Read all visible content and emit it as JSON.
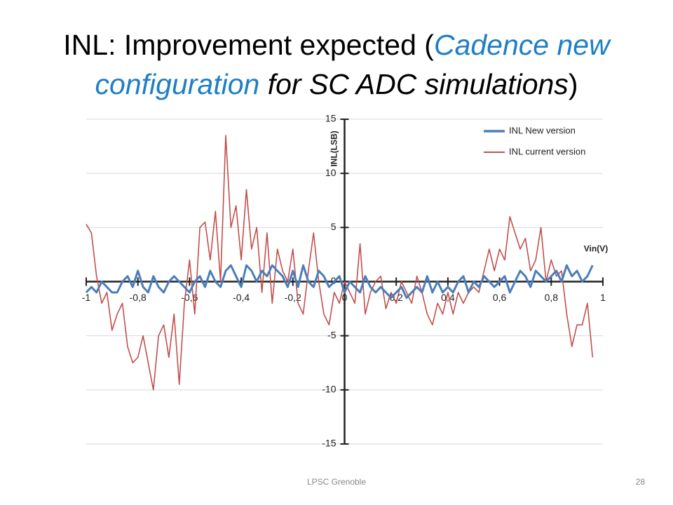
{
  "title_parts": [
    {
      "text": "INL: Improvement expected (",
      "color": "#000000",
      "italic": false
    },
    {
      "text": "Cadence new configuration",
      "color": "#1f7fc4",
      "italic": true
    },
    {
      "text": " for SC ADC simulations",
      "color": "#000000",
      "italic": true
    },
    {
      "text": ")",
      "color": "#000000",
      "italic": false
    }
  ],
  "footer": "LPSC Grenoble",
  "page_number": "28",
  "chart_data": {
    "type": "line",
    "y_label": "INL(LSB)",
    "x_label": "Vin(V)",
    "xlim": [
      -1,
      1
    ],
    "ylim": [
      -15,
      15
    ],
    "xticks": [
      -1,
      {
        "value": -0.8,
        "label": "-0,8"
      },
      {
        "value": -0.6,
        "label": "-0,6"
      },
      {
        "value": -0.4,
        "label": "-0,4"
      },
      {
        "value": -0.2,
        "label": "-0,2"
      },
      0,
      {
        "value": 0.2,
        "label": "0,2"
      },
      {
        "value": 0.4,
        "label": "0,4"
      },
      {
        "value": 0.6,
        "label": "0,6"
      },
      {
        "value": 0.8,
        "label": "0,8"
      },
      1
    ],
    "yticks": [
      -15,
      -10,
      -5,
      0,
      5,
      10,
      15
    ],
    "grid": true,
    "legend": "top-right",
    "x": [
      -1,
      -0.98,
      -0.96,
      -0.94,
      -0.92,
      -0.9,
      -0.88,
      -0.86,
      -0.84,
      -0.82,
      -0.8,
      -0.78,
      -0.76,
      -0.74,
      -0.72,
      -0.7,
      -0.68,
      -0.66,
      -0.64,
      -0.62,
      -0.6,
      -0.58,
      -0.56,
      -0.54,
      -0.52,
      -0.5,
      -0.48,
      -0.46,
      -0.44,
      -0.42,
      -0.4,
      -0.38,
      -0.36,
      -0.34,
      -0.32,
      -0.3,
      -0.28,
      -0.26,
      -0.24,
      -0.22,
      -0.2,
      -0.18,
      -0.16,
      -0.14,
      -0.12,
      -0.1,
      -0.08,
      -0.06,
      -0.04,
      -0.02,
      0,
      0.02,
      0.04,
      0.06,
      0.08,
      0.1,
      0.12,
      0.14,
      0.16,
      0.18,
      0.2,
      0.22,
      0.24,
      0.26,
      0.28,
      0.3,
      0.32,
      0.34,
      0.36,
      0.38,
      0.4,
      0.42,
      0.44,
      0.46,
      0.48,
      0.5,
      0.52,
      0.54,
      0.56,
      0.58,
      0.6,
      0.62,
      0.64,
      0.66,
      0.68,
      0.7,
      0.72,
      0.74,
      0.76,
      0.78,
      0.8,
      0.82,
      0.84,
      0.86,
      0.88,
      0.9,
      0.92,
      0.94,
      0.96
    ],
    "series": [
      {
        "name": "INL New version",
        "color": "#4a7ebb",
        "width": 3,
        "values": [
          -1,
          -0.5,
          -1,
          0,
          -0.5,
          -1,
          -1,
          0,
          0.5,
          -0.5,
          1,
          -0.5,
          -1,
          0.5,
          -0.5,
          -1,
          0,
          0.5,
          0,
          -0.5,
          -1,
          0,
          0.5,
          -0.5,
          1,
          0,
          -0.5,
          1,
          1.5,
          0.5,
          -0.5,
          1.5,
          1,
          0,
          1,
          0.5,
          1.5,
          1,
          0.5,
          -0.5,
          1,
          -0.5,
          1.5,
          0,
          -0.5,
          1,
          0.5,
          -0.5,
          0,
          0.5,
          -1,
          0,
          -0.5,
          -1,
          0.5,
          -0.5,
          -1,
          -0.5,
          -1,
          -1.5,
          -1,
          -0.5,
          -1.5,
          -1,
          -0.5,
          -1,
          0.5,
          -1,
          0,
          -1,
          -0.5,
          -1,
          0,
          0.5,
          -1,
          0,
          -0.5,
          0.5,
          0,
          -0.5,
          0,
          0.5,
          -1,
          0,
          1,
          0.5,
          -0.5,
          1,
          0.5,
          0,
          0.5,
          1,
          0,
          1.5,
          0.5,
          1,
          0,
          0.5,
          1.5
        ]
      },
      {
        "name": "INL current version",
        "color": "#c0504d",
        "width": 1.6,
        "values": [
          5.3,
          4.5,
          0.5,
          -2,
          -1,
          -4.5,
          -3,
          -2,
          -6,
          -7.5,
          -7,
          -5,
          -7.5,
          -10,
          -5,
          -4,
          -7,
          -3,
          -9.5,
          -2,
          2,
          -3,
          5,
          5.5,
          2,
          6.5,
          0,
          13.5,
          5,
          7,
          2,
          8.5,
          3,
          5,
          -1,
          4.5,
          -2,
          3,
          1,
          0,
          3,
          -2,
          -3,
          1,
          4.5,
          0,
          -3,
          -4,
          -1,
          -2,
          0,
          -1,
          -2,
          3.5,
          -3,
          -1,
          0,
          0.5,
          -2.5,
          -1,
          -2,
          0,
          -1,
          -2,
          0.5,
          -1,
          -3,
          -4,
          -2,
          -3,
          -1,
          -3,
          -1,
          -2,
          -1,
          -0.5,
          -1,
          1,
          3,
          1,
          3,
          2,
          6,
          4.5,
          3,
          4,
          1,
          2,
          5,
          0,
          2,
          0.5,
          1,
          -3,
          -6,
          -4,
          -4,
          -2,
          -7
        ]
      }
    ]
  }
}
